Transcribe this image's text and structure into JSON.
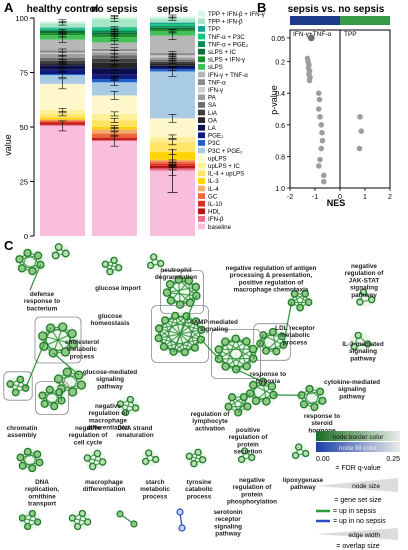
{
  "panel_letters": {
    "a": "A",
    "b": "B",
    "c": "C"
  },
  "colors": {
    "leg_TPP_IFNb_IFNg": "#d6f5e3",
    "leg_TPP_IFNb": "#a5e6c6",
    "leg_TPP": "#16a58f",
    "leg_TNFa_P3C": "#13c57e",
    "leg_TNFa_PGE2": "#0a8a52",
    "leg_sLPS_IC": "#0f6f3b",
    "leg_sLPS_IFNg": "#1b8f26",
    "leg_sLPS": "#44c25a",
    "leg_IFNg_TNFa": "#b7b7b7",
    "leg_TNFa": "#8a8a8a",
    "leg_IFNg": "#cfcfcf",
    "leg_PA": "#9e9e9e",
    "leg_SA": "#6e6e6e",
    "leg_LiA": "#3f3f3f",
    "leg_OA": "#262626",
    "leg_LA": "#0b0f4d",
    "leg_PGE2": "#101a7a",
    "leg_P3C": "#1d63c9",
    "leg_P3C_PGE2": "#a9cbe4",
    "leg_upLPS": "#fff8cc",
    "leg_upLPS_IC": "#fff099",
    "leg_IL4_upLPS": "#ffe466",
    "leg_IL3": "#ffd400",
    "leg_IL4": "#f6ad6b",
    "leg_GC": "#ef6a3c",
    "leg_IL10": "#d93020",
    "leg_HDL": "#b31616",
    "leg_IFNb": "#ee6f8c",
    "leg_baseline": "#f8bedc",
    "nes_pos_header": "#3a9b46",
    "nes_neg_header": "#1c3c8a",
    "nes_dot": "#9d9d9d",
    "node_border": "#1f7a2a",
    "node_fill": "#2b7fd0",
    "edge_sepsis": "#2a9a3a",
    "edge_nosepsis": "#2a4cc2"
  },
  "panel_a": {
    "columns": [
      "healthy control",
      "no sepsis",
      "sepsis"
    ],
    "ylabel": "value",
    "yticks": [
      "0",
      "25",
      "50",
      "75",
      "100"
    ],
    "legend": [
      "TPP + IFN-β + IFN-γ",
      "TPP + IFN-β",
      "TPP",
      "TNF-α + P3C",
      "TNF-α + PGE₂",
      "sLPS + IC",
      "sLPS + IFN-γ",
      "sLPS",
      "IFN-γ + TNF-α",
      "TNF-α",
      "IFN-γ",
      "PA",
      "SA",
      "LiA",
      "OA",
      "LA",
      "PGE₂",
      "P3C",
      "P3C + PGE₂",
      "upLPS",
      "upLPS + IC",
      "IL-4 + upLPS",
      "IL-3",
      "IL-4",
      "GC",
      "IL-10",
      "HDL",
      "IFN-β",
      "baseline"
    ]
  },
  "panel_b": {
    "title": "sepsis vs. no sepsis",
    "left_header": "IFN-γ+TNF-α",
    "right_header": "TPP",
    "xlabel": "NES",
    "ylabel": "p-value",
    "xticks": [
      "-2",
      "-1",
      "0",
      "1",
      "2"
    ],
    "yticks": [
      "0.05",
      "0.2",
      "0.4",
      "0.6",
      "0.8",
      "1.0"
    ]
  },
  "panel_c": {
    "labels": [
      "defense response to bacterium",
      "glucose import",
      "glucose homeostasis",
      "cholesterol metabolic process",
      "neutrophil degranulation",
      "negative regulation of antigen processing & presentation, positive regulation of macrophage chemotaxis",
      "cAMP-mediated signaling",
      "LDL receptor metabolic process",
      "negative regulation of JAK-STAT signaling pathway",
      "glucose-mediated signaling pathway",
      "negative regulation of macrophage differentiation",
      "regulation of lymphocyte activation",
      "response to hypoxia",
      "IL-3-mediated signaling pathway",
      "chromatin assembly",
      "negative regulation of cell cycle",
      "DNA strand renaturation",
      "positive regulation of protein secretion",
      "response to steroid hormone",
      "cytokine-mediated signaling pathway",
      "DNA replication, ornithine transport",
      "macrophage differentiation",
      "starch metabolic process",
      "tyrosine catabolic process",
      "negative regulation of protein phosphorylation",
      "lipoxygenase pathway",
      "serotonin receptor signaling pathway"
    ],
    "legend": {
      "node_border_color": "node border color",
      "node_fill_color": "node fill color",
      "q_min": "0.00",
      "q_max": "0.25",
      "q_label": "= FDR q-value",
      "node_size": "node size",
      "node_size_desc": "= gene set size",
      "up_sepsis": "= up in sepsis",
      "up_nosepsis": "= up in no sepsis",
      "edge_width": "edge width",
      "edge_width_desc": "= overlap size"
    }
  },
  "chart_data": [
    {
      "type": "bar",
      "stacked": true,
      "title": "",
      "xlabel": "",
      "ylabel": "value",
      "ylim": [
        0,
        100
      ],
      "categories": [
        "healthy control",
        "no sepsis",
        "sepsis"
      ],
      "series": [
        {
          "name": "baseline",
          "values": [
            50.5,
            43.5,
            30.0
          ]
        },
        {
          "name": "IFN-β",
          "values": [
            0.5,
            0.5,
            1.0
          ]
        },
        {
          "name": "HDL",
          "values": [
            0.8,
            0.7,
            1.2
          ]
        },
        {
          "name": "IL-10",
          "values": [
            0.5,
            0.5,
            1.0
          ]
        },
        {
          "name": "GC",
          "values": [
            0.7,
            1.8,
            1.0
          ]
        },
        {
          "name": "IL-4",
          "values": [
            0.5,
            2.0,
            0.8
          ]
        },
        {
          "name": "IL-3",
          "values": [
            0.8,
            1.0,
            3.5
          ]
        },
        {
          "name": "IL-4 + upLPS",
          "values": [
            1.5,
            3.0,
            4.5
          ]
        },
        {
          "name": "upLPS + IC",
          "values": [
            2.0,
            3.0,
            2.5
          ]
        },
        {
          "name": "upLPS",
          "values": [
            12.0,
            8.5,
            8.5
          ]
        },
        {
          "name": "P3C + PGE₂",
          "values": [
            4.0,
            6.0,
            21.5
          ]
        },
        {
          "name": "P3C",
          "values": [
            0.5,
            1.5,
            1.0
          ]
        },
        {
          "name": "PGE₂",
          "values": [
            2.0,
            2.0,
            0.8
          ]
        },
        {
          "name": "LA",
          "values": [
            2.0,
            3.0,
            0.8
          ]
        },
        {
          "name": "OA",
          "values": [
            1.0,
            2.5,
            0.8
          ]
        },
        {
          "name": "LiA",
          "values": [
            1.0,
            1.8,
            1.0
          ]
        },
        {
          "name": "SA",
          "values": [
            1.5,
            1.5,
            1.0
          ]
        },
        {
          "name": "PA",
          "values": [
            1.8,
            1.5,
            1.0
          ]
        },
        {
          "name": "IFN-γ",
          "values": [
            0.5,
            0.5,
            1.0
          ]
        },
        {
          "name": "TNF-α",
          "values": [
            1.0,
            1.0,
            1.0
          ]
        },
        {
          "name": "IFN-γ + TNF-α",
          "values": [
            5.0,
            3.0,
            8.0
          ]
        },
        {
          "name": "sLPS",
          "values": [
            2.0,
            2.5,
            2.0
          ]
        },
        {
          "name": "sLPS + IFN-γ",
          "values": [
            1.0,
            1.0,
            0.8
          ]
        },
        {
          "name": "sLPS + IC",
          "values": [
            1.0,
            1.0,
            0.8
          ]
        },
        {
          "name": "TNF-α + PGE₂",
          "values": [
            0.5,
            1.0,
            0.8
          ]
        },
        {
          "name": "TNF-α + P3C",
          "values": [
            0.5,
            1.0,
            0.8
          ]
        },
        {
          "name": "TPP",
          "values": [
            0.5,
            0.5,
            0.8
          ]
        },
        {
          "name": "TPP + IFN-β",
          "values": [
            1.9,
            3.7,
            1.8
          ]
        },
        {
          "name": "TPP + IFN-β + IFN-γ",
          "values": [
            1.0,
            1.0,
            1.0
          ]
        }
      ]
    },
    {
      "type": "scatter",
      "title": "sepsis vs. no sepsis",
      "xlabel": "NES",
      "ylabel": "p-value",
      "xlim": [
        -2,
        2
      ],
      "ylim": [
        1.0,
        0.0
      ],
      "x": [
        -1.15,
        -1.3,
        -1.28,
        -1.24,
        -1.26,
        -1.22,
        -1.24,
        -1.2,
        -1.22,
        -0.85,
        -0.82,
        -0.85,
        -0.8,
        -0.75,
        -0.72,
        -0.7,
        -0.75,
        -0.8,
        -0.85,
        -0.65,
        -0.65,
        0.8,
        0.85,
        0.78
      ],
      "y": [
        0.05,
        0.18,
        0.2,
        0.22,
        0.24,
        0.26,
        0.28,
        0.3,
        0.32,
        0.4,
        0.44,
        0.5,
        0.55,
        0.6,
        0.65,
        0.7,
        0.75,
        0.82,
        0.86,
        0.92,
        0.96,
        0.55,
        0.64,
        0.75
      ]
    }
  ]
}
